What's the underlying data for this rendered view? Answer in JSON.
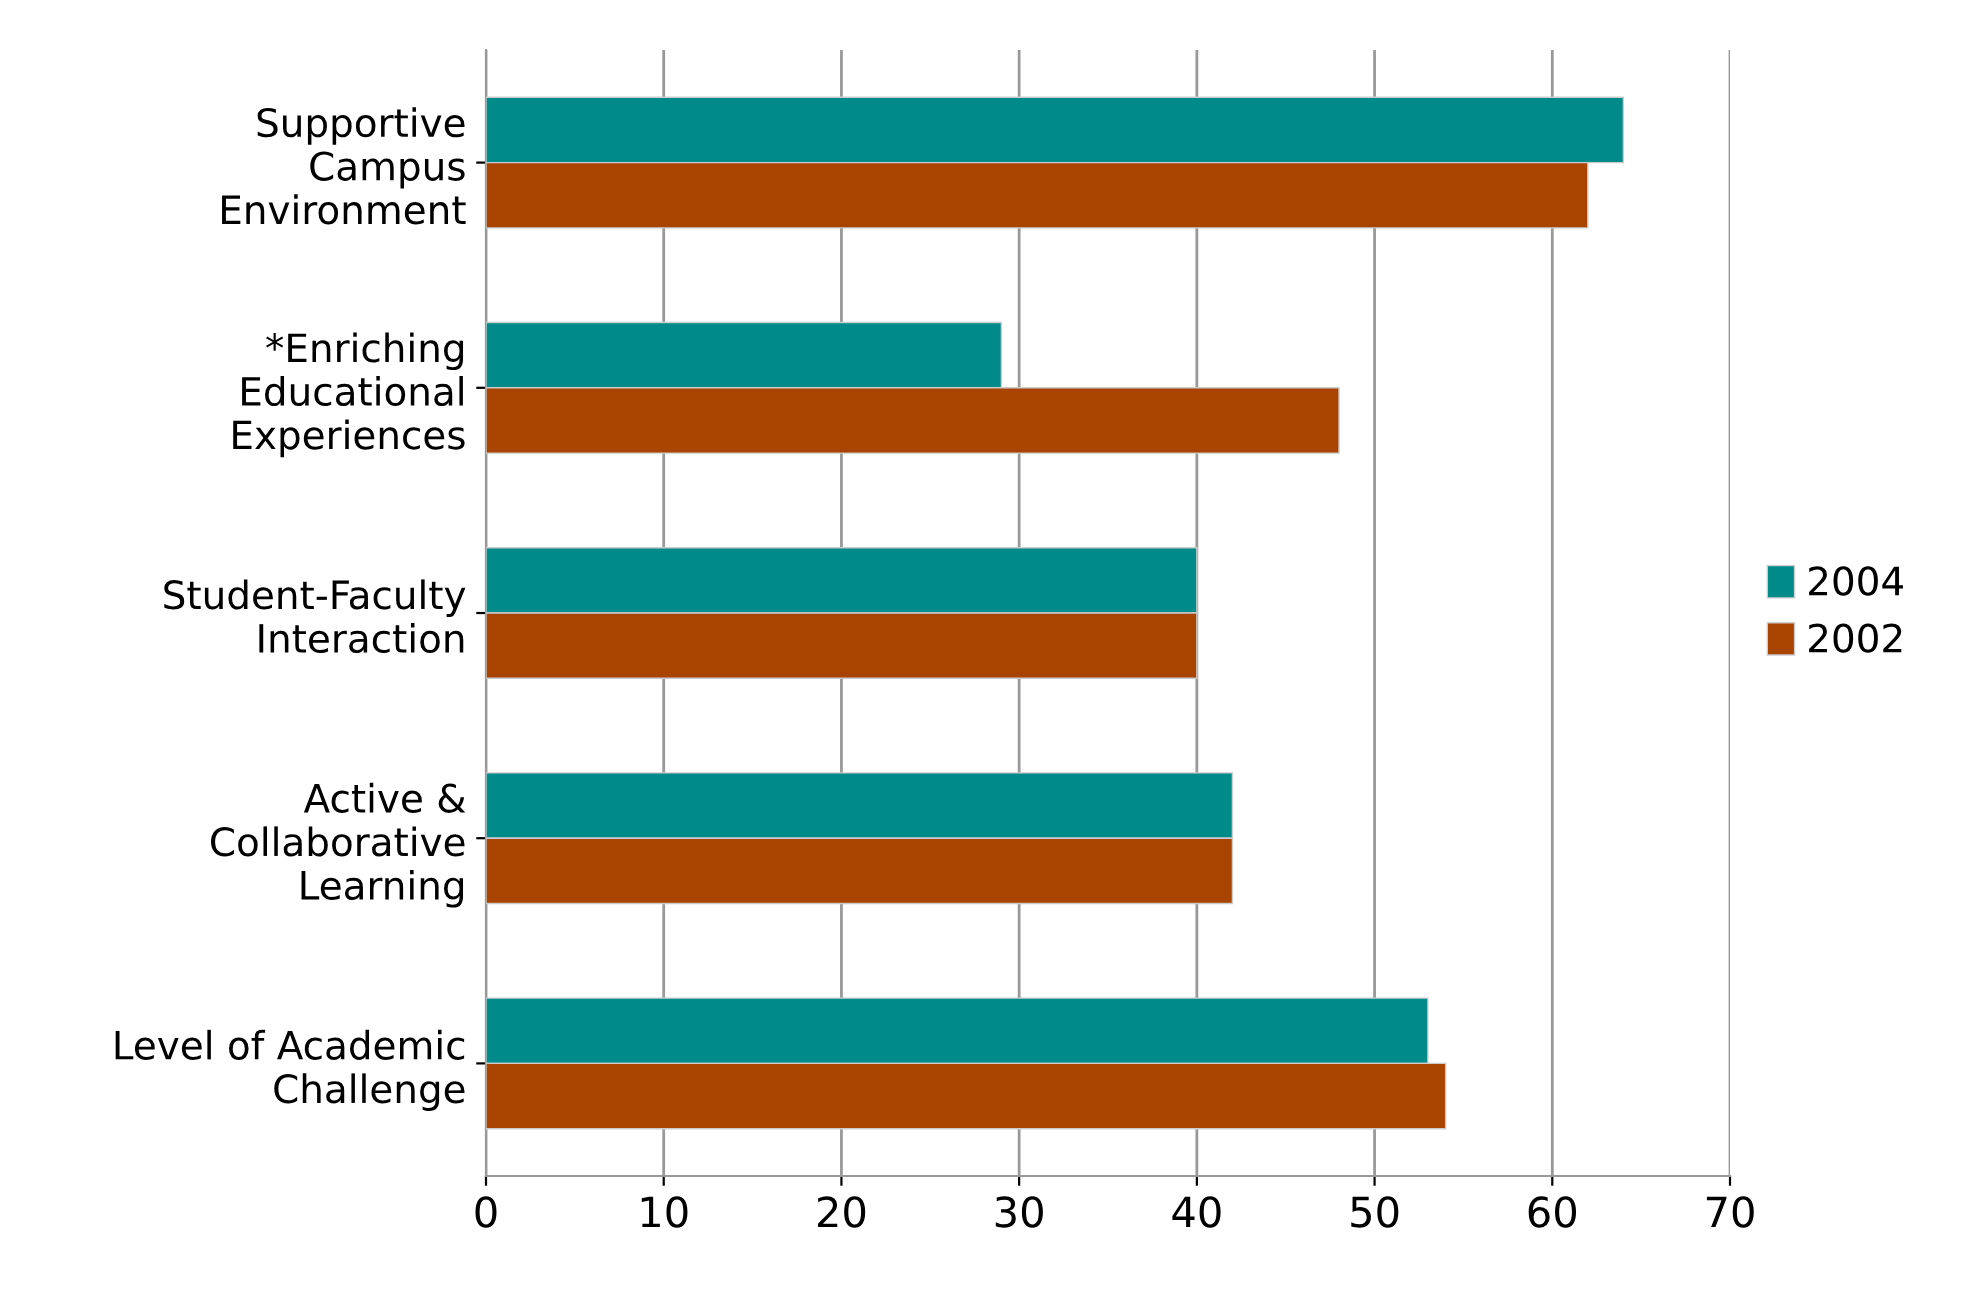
{
  "chart_data": {
    "type": "bar",
    "orientation": "horizontal",
    "categories": [
      "Supportive\nCampus\nEnvironment",
      "*Enriching\nEducational\nExperiences",
      "Student-Faculty\nInteraction",
      "Active &\nCollaborative\nLearning",
      "Level of Academic\nChallenge"
    ],
    "series": [
      {
        "name": "2004",
        "color": "#008b8b",
        "values": [
          64,
          29,
          40,
          42,
          53
        ]
      },
      {
        "name": "2002",
        "color": "#a84300",
        "values": [
          62,
          48,
          40,
          42,
          54
        ]
      }
    ],
    "xlim": [
      0,
      70
    ],
    "xticks": [
      0,
      10,
      20,
      30,
      40,
      50,
      60,
      70
    ],
    "grid": "x",
    "legend": "right"
  }
}
